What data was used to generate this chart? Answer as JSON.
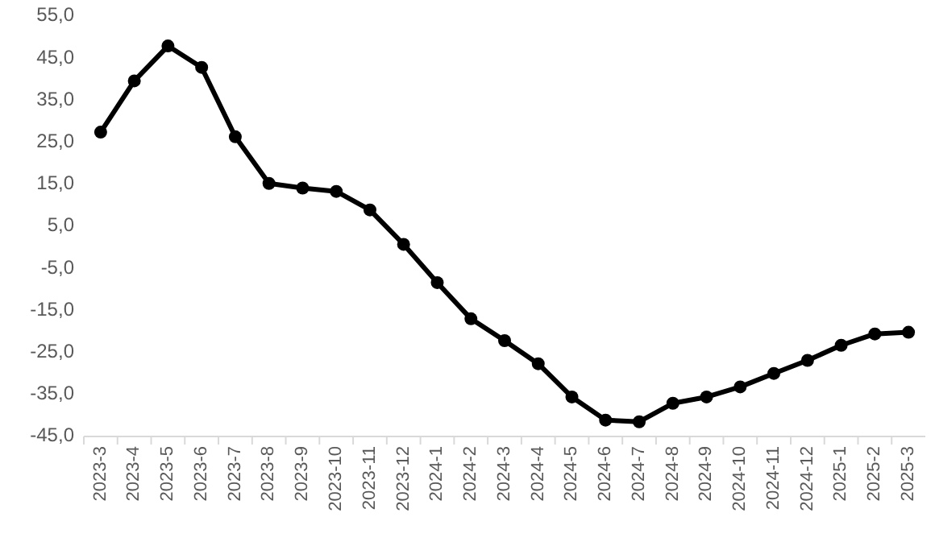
{
  "chart_data": {
    "type": "line",
    "categories": [
      "2023-3",
      "2023-4",
      "2023-5",
      "2023-6",
      "2023-7",
      "2023-8",
      "2023-9",
      "2023-10",
      "2023-11",
      "2023-12",
      "2024-1",
      "2024-2",
      "2024-3",
      "2024-4",
      "2024-5",
      "2024-6",
      "2024-7",
      "2024-8",
      "2024-9",
      "2024-10",
      "2024-11",
      "2024-12",
      "2025-1",
      "2025-2",
      "2025-3"
    ],
    "series": [
      {
        "color": "#000000",
        "values": [
          27.4,
          39.6,
          47.9,
          42.8,
          26.3,
          15.2,
          14.1,
          13.3,
          8.9,
          0.7,
          -8.4,
          -17.0,
          -22.2,
          -27.7,
          -35.6,
          -41.1,
          -41.5,
          -37.1,
          -35.6,
          -33.2,
          -30.0,
          -26.9,
          -23.3,
          -20.6,
          -20.2
        ]
      }
    ],
    "ylim": [
      -45,
      55
    ],
    "yticks": [
      {
        "value": -45,
        "label": "-45,0"
      },
      {
        "value": -35,
        "label": "-35,0"
      },
      {
        "value": -25,
        "label": "-25,0"
      },
      {
        "value": -15,
        "label": "-15,0"
      },
      {
        "value": -5,
        "label": "-5,0"
      },
      {
        "value": 5,
        "label": "5,0"
      },
      {
        "value": 15,
        "label": "15,0"
      },
      {
        "value": 25,
        "label": "25,0"
      },
      {
        "value": 35,
        "label": "35,0"
      },
      {
        "value": 45,
        "label": "45,0"
      },
      {
        "value": 55,
        "label": "55,0"
      }
    ],
    "grid": false,
    "marker": "circle",
    "line_style": "solid"
  }
}
